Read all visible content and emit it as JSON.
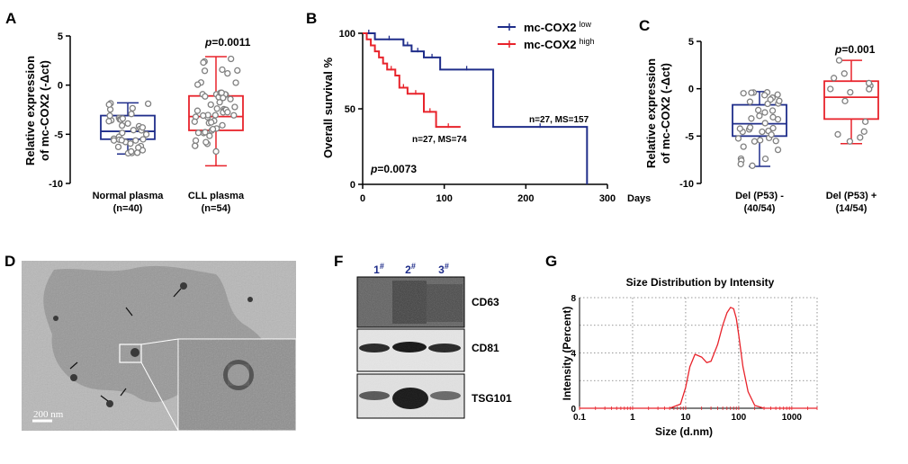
{
  "panels": {
    "A": {
      "letter": "A",
      "ylabel_line1": "Relative expression",
      "ylabel_line2": "of mc-COX2 (-Δct)",
      "yticks": [
        "5",
        "0",
        "-5",
        "-10"
      ],
      "cat1_line1": "Normal plasma",
      "cat1_line2": "(n=40)",
      "cat2_line1": "CLL plasma",
      "cat2_line2": "(n=54)",
      "p_prefix": "p",
      "p_value": "=0.0011"
    },
    "B": {
      "letter": "B",
      "ylabel": "Overall survival %",
      "xunit": "Days",
      "yticks": [
        "100",
        "50",
        "0"
      ],
      "xticks": [
        "0",
        "100",
        "200",
        "300"
      ],
      "legend_low": "mc-COX2",
      "legend_low_sup": "low",
      "legend_high": "mc-COX2",
      "legend_high_sup": "high",
      "ann_high": "n=27, MS=74",
      "ann_low": "n=27, MS=157",
      "p_prefix": "p",
      "p_value": "=0.0073"
    },
    "C": {
      "letter": "C",
      "ylabel_line1": "Relative expression",
      "ylabel_line2": "of mc-COX2 (-Δct)",
      "yticks": [
        "5",
        "0",
        "-5",
        "-10"
      ],
      "cat1_line1": "Del (P53) -",
      "cat1_line2": "(40/54)",
      "cat2_line1": "Del (P53) +",
      "cat2_line2": "(14/54)",
      "p_prefix": "p",
      "p_value": "=0.001"
    },
    "D": {
      "letter": "D",
      "scale_bar": "200 nm"
    },
    "F": {
      "letter": "F",
      "lanes": [
        "1",
        "2",
        "3"
      ],
      "lane_mark": "#",
      "bands": [
        "CD63",
        "CD81",
        "TSG101"
      ]
    },
    "G": {
      "letter": "G",
      "title": "Size Distribution by Intensity",
      "ylabel": "Intensity (Percent)",
      "xlabel": "Size (d.nm)",
      "yticks": [
        "8",
        "4",
        "0"
      ],
      "xticks": [
        "0.1",
        "1",
        "10",
        "100",
        "1000"
      ]
    }
  },
  "chart_data": [
    {
      "type": "box",
      "panel": "A",
      "ylim": [
        -10,
        5
      ],
      "categories": [
        "Normal plasma (n=40)",
        "CLL plasma (n=54)"
      ],
      "series": [
        {
          "values": [
            -7,
            -5.5,
            -4.7,
            -3.1,
            -1.8
          ],
          "color": "#1f2d8a"
        },
        {
          "values": [
            -8.2,
            -4.6,
            -3.2,
            -1.1,
            2.9
          ],
          "color": "#e8232b"
        }
      ]
    },
    {
      "type": "line",
      "panel": "B",
      "xlim": [
        0,
        300
      ],
      "ylim": [
        0,
        100
      ],
      "series": [
        {
          "name": "mc-COX2 low",
          "color": "#1f2d8a",
          "x": [
            0,
            15,
            15,
            50,
            50,
            60,
            60,
            75,
            75,
            95,
            95,
            160,
            160,
            275,
            275
          ],
          "y": [
            100,
            100,
            96,
            96,
            92,
            92,
            88,
            88,
            84,
            84,
            76,
            76,
            38,
            38,
            0
          ]
        },
        {
          "name": "mc-COX2 high",
          "color": "#e8232b",
          "x": [
            0,
            5,
            5,
            10,
            10,
            15,
            15,
            20,
            20,
            25,
            25,
            30,
            30,
            40,
            40,
            45,
            45,
            55,
            55,
            75,
            75,
            90,
            90,
            120
          ],
          "y": [
            100,
            100,
            96,
            96,
            92,
            92,
            88,
            88,
            84,
            84,
            80,
            80,
            76,
            76,
            72,
            72,
            64,
            64,
            60,
            60,
            48,
            48,
            38,
            38
          ]
        }
      ]
    },
    {
      "type": "box",
      "panel": "C",
      "ylim": [
        -10,
        5
      ],
      "categories": [
        "Del (P53) - (40/54)",
        "Del (P53) + (14/54)"
      ],
      "series": [
        {
          "values": [
            -8.2,
            -5,
            -3.7,
            -1.7,
            -0.3
          ],
          "color": "#1f2d8a"
        },
        {
          "values": [
            -5.8,
            -3.2,
            -0.9,
            0.8,
            3.0
          ],
          "color": "#e8232b"
        }
      ]
    },
    {
      "type": "line",
      "panel": "G",
      "xscale": "log",
      "xlim": [
        0.1,
        3000
      ],
      "ylim": [
        0,
        8
      ],
      "series": [
        {
          "color": "#e8232b",
          "x": [
            5,
            8,
            10,
            12,
            15,
            20,
            25,
            30,
            40,
            50,
            60,
            70,
            80,
            90,
            100,
            120,
            150,
            200,
            300
          ],
          "y": [
            0,
            0.3,
            1.5,
            3.0,
            3.9,
            3.7,
            3.3,
            3.4,
            4.6,
            6.0,
            6.9,
            7.3,
            7.2,
            6.5,
            5.3,
            3.0,
            1.2,
            0.2,
            0
          ]
        }
      ]
    }
  ]
}
